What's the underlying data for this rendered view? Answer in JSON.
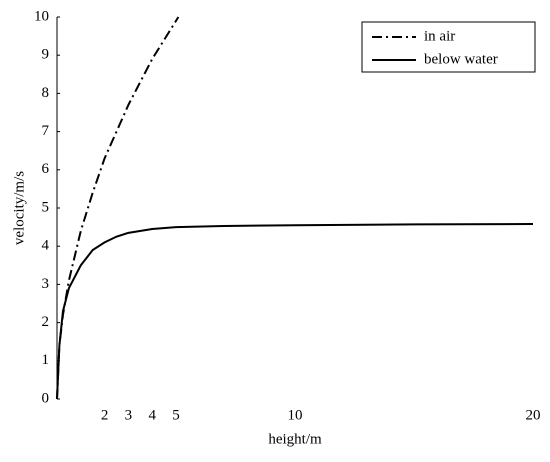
{
  "chart_data": {
    "type": "line",
    "x_label": "height/m",
    "y_label": "velocity/m/s",
    "xlim": [
      0,
      20
    ],
    "xticks": [
      2,
      3,
      4,
      5,
      10,
      20
    ],
    "ylim": [
      0,
      10
    ],
    "yticks": [
      0,
      1,
      2,
      3,
      4,
      5,
      6,
      7,
      8,
      9,
      10
    ],
    "legend": "upper right",
    "series": [
      {
        "name": "in air",
        "color": "#000000",
        "linestyle": "dashdot",
        "x": [
          0,
          0.1,
          0.25,
          0.5,
          1,
          1.5,
          2,
          2.5,
          3,
          3.5,
          4,
          4.5,
          5.1
        ],
        "values": [
          0,
          1.4,
          2.2,
          3.1,
          4.4,
          5.4,
          6.3,
          7.0,
          7.7,
          8.3,
          8.9,
          9.4,
          10
        ]
      },
      {
        "name": "below water",
        "color": "#000000",
        "linestyle": "solid",
        "x": [
          0,
          0.1,
          0.25,
          0.5,
          1,
          1.5,
          2,
          2.5,
          3,
          4,
          5,
          7,
          10,
          15,
          20
        ],
        "values": [
          0,
          1.4,
          2.3,
          2.9,
          3.5,
          3.9,
          4.1,
          4.25,
          4.35,
          4.45,
          4.5,
          4.53,
          4.55,
          4.57,
          4.58
        ]
      }
    ]
  }
}
